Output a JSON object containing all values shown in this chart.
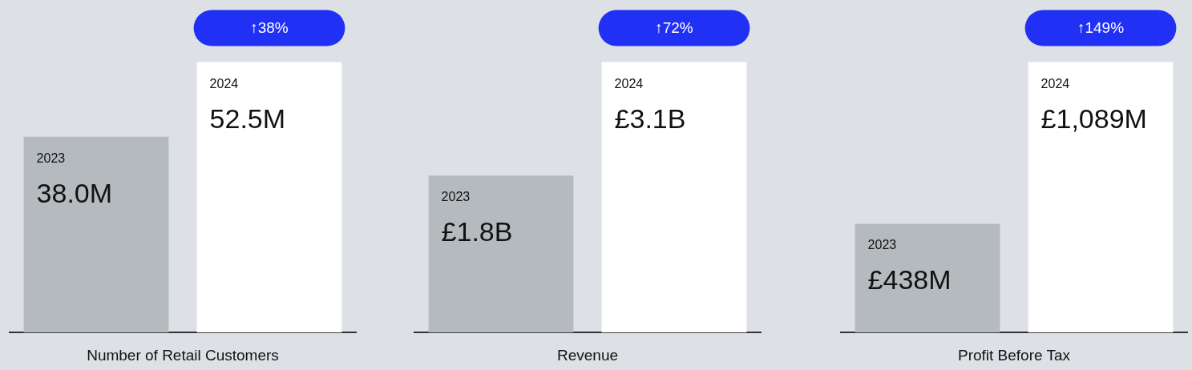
{
  "chart_data": [
    {
      "type": "bar",
      "xlabel": "Number of Retail Customers",
      "categories": [
        "2023",
        "2024"
      ],
      "values": [
        38.0,
        52.5
      ],
      "colors": [
        "#b5babe",
        "#ffffff"
      ],
      "value_labels": [
        "38.0M",
        "52.5M"
      ],
      "annotations": [
        "↑38%"
      ],
      "tick_labels": false,
      "grid": false,
      "legend": false
    },
    {
      "type": "bar",
      "xlabel": "Revenue",
      "categories": [
        "2023",
        "2024"
      ],
      "values": [
        1.8,
        3.1
      ],
      "colors": [
        "#b5babe",
        "#ffffff"
      ],
      "value_labels": [
        "£1.8B",
        "£3.1B"
      ],
      "annotations": [
        "↑72%"
      ],
      "tick_labels": false,
      "grid": false,
      "legend": false
    },
    {
      "type": "bar",
      "xlabel": "Profit Before Tax",
      "categories": [
        "2023",
        "2024"
      ],
      "values": [
        438,
        1089
      ],
      "colors": [
        "#b5babe",
        "#ffffff"
      ],
      "value_labels": [
        "£438M",
        "£1,089M"
      ],
      "annotations": [
        "↑149%"
      ],
      "tick_labels": false,
      "grid": false,
      "legend": false
    }
  ]
}
